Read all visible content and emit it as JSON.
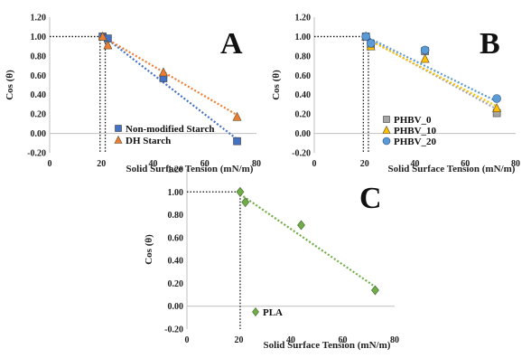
{
  "chart_data": [
    {
      "panel": "A",
      "type": "scatter",
      "xlabel": "Solid Surface Tension  (mN/m)",
      "ylabel": "Cos (θ)",
      "xlim": [
        0,
        80
      ],
      "ylim": [
        -0.2,
        1.2
      ],
      "xticks": [
        "0",
        "20",
        "40",
        "60",
        "80"
      ],
      "yticks": [
        "-0.20",
        "0.00",
        "0.20",
        "0.40",
        "0.60",
        "0.80",
        "1.00",
        "1.20"
      ],
      "critical_x": [
        19.5,
        21.5
      ],
      "legend_position": "bottom-right",
      "series": [
        {
          "name": "Non-modified Starch",
          "marker": "square",
          "color": "#4472C4",
          "x": [
            20.5,
            22.5,
            44,
            72.5
          ],
          "y": [
            1.0,
            0.98,
            0.57,
            -0.08
          ],
          "fit": {
            "x": [
              20.5,
              72.5
            ],
            "y": [
              1.01,
              -0.06
            ]
          }
        },
        {
          "name": "DH Starch",
          "marker": "triangle",
          "color": "#ED7D31",
          "x": [
            20.5,
            22.5,
            44,
            72.5
          ],
          "y": [
            1.0,
            0.91,
            0.63,
            0.17
          ],
          "fit": {
            "x": [
              20.5,
              72.5
            ],
            "y": [
              1.0,
              0.19
            ]
          }
        }
      ]
    },
    {
      "panel": "B",
      "type": "scatter",
      "xlabel": "Solid Surface Tension  (mN/m)",
      "ylabel": "Cos (θ)",
      "xlim": [
        0,
        80
      ],
      "ylim": [
        -0.2,
        1.2
      ],
      "xticks": [
        "0",
        "20",
        "40",
        "60",
        "80"
      ],
      "yticks": [
        "-0.20",
        "0.00",
        "0.20",
        "0.40",
        "0.60",
        "0.80",
        "1.00",
        "1.20"
      ],
      "critical_x": [
        19.5,
        21.5
      ],
      "legend_position": "bottom-left",
      "series": [
        {
          "name": "PHBV_0",
          "marker": "square",
          "color": "#A5A5A5",
          "x": [
            20.5,
            22.5,
            44,
            72.5
          ],
          "y": [
            1.0,
            0.92,
            0.85,
            0.21
          ],
          "fit": {
            "x": [
              20.5,
              72.5
            ],
            "y": [
              0.99,
              0.25
            ]
          }
        },
        {
          "name": "PHBV_10",
          "marker": "triangle",
          "color": "#FFC000",
          "x": [
            20.5,
            22.5,
            44,
            72.5
          ],
          "y": [
            1.0,
            0.9,
            0.77,
            0.26
          ],
          "fit": {
            "x": [
              20.5,
              72.5
            ],
            "y": [
              0.98,
              0.28
            ]
          }
        },
        {
          "name": "PHBV_20",
          "marker": "circle",
          "color": "#5B9BD5",
          "x": [
            20.5,
            22.5,
            44,
            72.5
          ],
          "y": [
            1.0,
            0.93,
            0.86,
            0.36
          ],
          "fit": {
            "x": [
              20.5,
              72.5
            ],
            "y": [
              1.0,
              0.33
            ]
          }
        }
      ]
    },
    {
      "panel": "C",
      "type": "scatter",
      "xlabel": "Solid Surface Tension  (mN/m)",
      "ylabel": "Cos (θ)",
      "xlim": [
        0,
        80
      ],
      "ylim": [
        -0.2,
        1.2
      ],
      "xticks": [
        "0",
        "20",
        "40",
        "60",
        "80"
      ],
      "yticks": [
        "-0.20",
        "0.00",
        "0.20",
        "0.40",
        "0.60",
        "0.80",
        "1.00",
        "1.20"
      ],
      "critical_x": [
        20.5
      ],
      "legend_position": "bottom-left",
      "series": [
        {
          "name": "PLA",
          "marker": "diamond",
          "color": "#70AD47",
          "x": [
            20.5,
            22.5,
            44,
            72.5
          ],
          "y": [
            1.0,
            0.91,
            0.71,
            0.14
          ],
          "fit": {
            "x": [
              20.5,
              72.5
            ],
            "y": [
              0.98,
              0.17
            ]
          }
        }
      ]
    }
  ]
}
